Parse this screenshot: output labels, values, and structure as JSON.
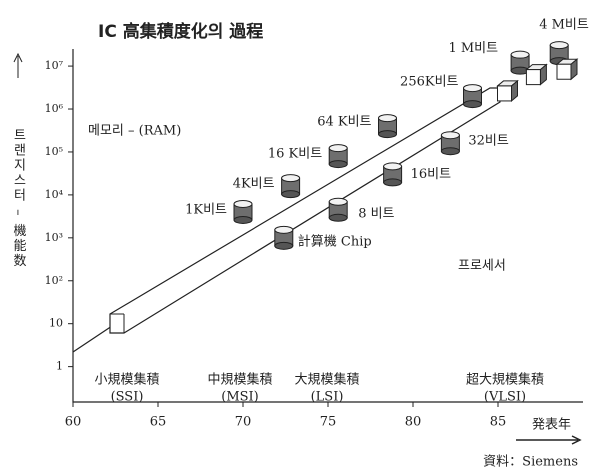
{
  "chart_data": {
    "type": "scatter",
    "title": "IC 高集積度化의 過程",
    "y_label": "트랜지스터 – 機能数",
    "x_label": "発表年",
    "source": "資料：Siemens",
    "log_y": true,
    "xlim": [
      60,
      90
    ],
    "xticks": [
      60,
      65,
      70,
      75,
      80,
      85
    ],
    "ylim": [
      0.15,
      25000000
    ],
    "yticks": [
      1,
      10,
      {
        "value": 100,
        "label": "10²"
      },
      {
        "value": 1000,
        "label": "10³"
      },
      {
        "value": 10000,
        "label": "10⁴"
      },
      {
        "value": 100000,
        "label": "10⁵"
      },
      {
        "value": 1000000,
        "label": "10⁶"
      },
      {
        "value": 10000000,
        "label": "10⁷"
      }
    ],
    "regions": [
      {
        "label": "小規模集積",
        "sub": "(SSI)"
      },
      {
        "label": "中規模集積",
        "sub": "(MSI)"
      },
      {
        "label": "大規模集積",
        "sub": "(LSI)"
      },
      {
        "label": "超大規模集積",
        "sub": "(VLSI)"
      }
    ],
    "series": [
      {
        "name": "메모리 – (RAM)",
        "marker": "cylinder",
        "x": [
          70,
          72.8,
          75.6,
          78.5,
          83.5,
          86.3,
          88.6
        ],
        "values": [
          4000,
          16000,
          80000,
          400000,
          2000000,
          12000000,
          20000000
        ],
        "labels": [
          "1K비트",
          "4K비트",
          "16 K비트",
          "64 K비트",
          "256K비트",
          "1 M비트",
          "4 M비트"
        ]
      },
      {
        "name": "프로세서",
        "marker": "cylinder",
        "x": [
          72.4,
          75.6,
          78.8,
          82.2
        ],
        "values": [
          1000,
          4500,
          30000,
          160000
        ],
        "labels": [
          "計算機 Chip",
          "8 비트",
          "16비트",
          "32비트"
        ]
      },
      {
        "marker": "box",
        "x": [
          85.5,
          87.2,
          89
        ],
        "values": [
          2500000,
          6000000,
          8000000
        ]
      }
    ]
  }
}
